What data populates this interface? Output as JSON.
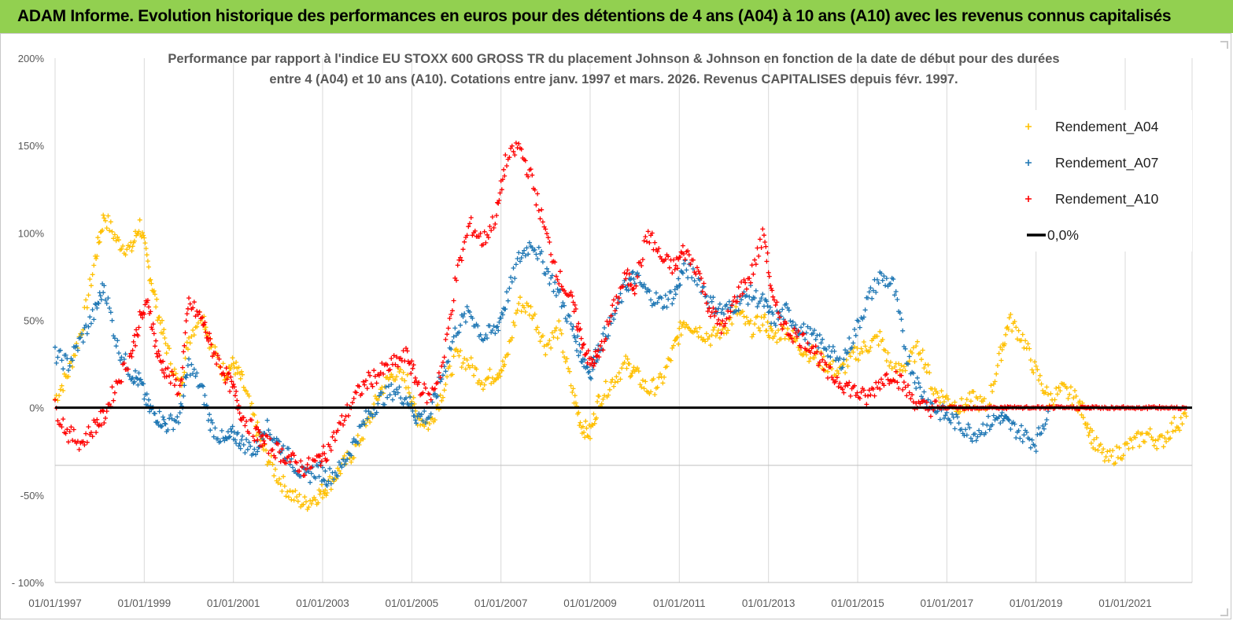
{
  "banner": {
    "title": "ADAM Informe. Evolution historique des performances en euros pour des détentions de 4 ans (A04) à 10 ans (A10) avec les revenus connus capitalisés"
  },
  "chart_data": {
    "type": "scatter",
    "title_line1": "Performance par rapport à l'indice EU STOXX 600 GROSS TR  du placement Johnson & Johnson en fonction de la date de début pour des durées",
    "title_line2": "entre 4 (A04) et 10 ans (A10). Cotations entre janv. 1997 et mars. 2026. Revenus CAPITALISES depuis févr. 1997.",
    "ylim": [
      -100,
      200
    ],
    "ytick_labels": [
      "200%",
      "150%",
      "100%",
      "50%",
      "0%",
      "-50%",
      "- 100%"
    ],
    "ytick_values": [
      200,
      150,
      100,
      50,
      0,
      -50,
      -100
    ],
    "xtick_labels": [
      "01/01/1997",
      "01/01/1999",
      "01/01/2001",
      "01/01/2003",
      "01/01/2005",
      "01/01/2007",
      "01/01/2009",
      "01/01/2011",
      "01/01/2013",
      "01/01/2015",
      "01/01/2017",
      "01/01/2019",
      "01/01/2021"
    ],
    "xtick_years": [
      1997,
      1999,
      2001,
      2003,
      2005,
      2007,
      2009,
      2011,
      2013,
      2015,
      2017,
      2019,
      2021
    ],
    "xlim": [
      1997.0,
      2022.5
    ],
    "grid": "vertical",
    "legend_position": "top-right",
    "series": [
      {
        "name": "Rendement_A04",
        "color": "#ffc000",
        "marker": "plus",
        "x": [
          1997.0,
          1997.3,
          1997.6,
          1997.9,
          1998.1,
          1998.4,
          1998.7,
          1998.9,
          1999.1,
          1999.3,
          1999.5,
          1999.8,
          2000.0,
          2000.3,
          2000.5,
          2000.8,
          2001.0,
          2001.2,
          2001.5,
          2001.7,
          2002.0,
          2002.3,
          2002.6,
          2002.9,
          2003.1,
          2003.4,
          2003.7,
          2004.0,
          2004.3,
          2004.6,
          2004.9,
          2005.1,
          2005.4,
          2005.7,
          2006.0,
          2006.3,
          2006.6,
          2006.9,
          2007.1,
          2007.4,
          2007.7,
          2008.0,
          2008.3,
          2008.6,
          2008.8,
          2009.0,
          2009.2,
          2009.5,
          2009.8,
          2010.0,
          2010.3,
          2010.6,
          2010.9,
          2011.1,
          2011.4,
          2011.7,
          2012.0,
          2012.3,
          2012.6,
          2012.9,
          2013.1,
          2013.4,
          2013.7,
          2014.0,
          2014.3,
          2014.6,
          2014.9,
          2015.2,
          2015.5,
          2015.8,
          2016.1,
          2016.4,
          2016.7,
          2017.0,
          2017.3,
          2017.6,
          2017.9,
          2018.2,
          2018.4,
          2018.7,
          2019.0,
          2019.3,
          2019.6,
          2019.9,
          2020.1,
          2020.3,
          2020.6,
          2020.9,
          2021.2,
          2021.5,
          2021.8,
          2022.1,
          2022.4
        ],
        "y": [
          5,
          20,
          45,
          85,
          110,
          95,
          90,
          105,
          80,
          55,
          35,
          10,
          40,
          55,
          35,
          20,
          25,
          15,
          -10,
          -25,
          -40,
          -50,
          -55,
          -50,
          -45,
          -35,
          -25,
          -10,
          10,
          20,
          15,
          -5,
          -10,
          10,
          30,
          25,
          15,
          20,
          25,
          60,
          55,
          35,
          45,
          10,
          -10,
          -15,
          5,
          15,
          25,
          20,
          10,
          15,
          35,
          50,
          45,
          40,
          45,
          55,
          45,
          50,
          40,
          45,
          35,
          30,
          25,
          20,
          30,
          35,
          40,
          20,
          25,
          35,
          10,
          5,
          0,
          5,
          0,
          30,
          50,
          40,
          20,
          5,
          10,
          5,
          -5,
          -20,
          -30,
          -25,
          -20,
          -15,
          -20,
          -10,
          -5
        ]
      },
      {
        "name": "Rendement_A07",
        "color": "#1f77b4",
        "marker": "plus",
        "x": [
          1997.0,
          1997.3,
          1997.6,
          1997.9,
          1998.1,
          1998.4,
          1998.7,
          1998.9,
          1999.1,
          1999.3,
          1999.5,
          1999.8,
          2000.0,
          2000.3,
          2000.5,
          2000.8,
          2001.0,
          2001.2,
          2001.5,
          2001.7,
          2002.0,
          2002.3,
          2002.6,
          2002.9,
          2003.1,
          2003.4,
          2003.7,
          2004.0,
          2004.3,
          2004.6,
          2004.9,
          2005.1,
          2005.4,
          2005.7,
          2006.0,
          2006.3,
          2006.6,
          2006.9,
          2007.1,
          2007.4,
          2007.7,
          2008.0,
          2008.3,
          2008.6,
          2008.8,
          2009.0,
          2009.2,
          2009.5,
          2009.8,
          2010.0,
          2010.3,
          2010.6,
          2010.9,
          2011.1,
          2011.4,
          2011.7,
          2012.0,
          2012.3,
          2012.6,
          2012.9,
          2013.1,
          2013.4,
          2013.7,
          2014.0,
          2014.3,
          2014.6,
          2014.9,
          2015.2,
          2015.5,
          2015.8,
          2016.1,
          2016.4,
          2016.7,
          2017.0,
          2017.3,
          2017.6,
          2017.9,
          2018.2,
          2018.4,
          2018.7,
          2019.0,
          2019.3
        ],
        "y": [
          30,
          25,
          40,
          55,
          70,
          35,
          20,
          15,
          0,
          -5,
          -10,
          -5,
          25,
          10,
          -10,
          -20,
          -15,
          -20,
          -25,
          -10,
          -20,
          -30,
          -40,
          -35,
          -40,
          -35,
          -20,
          -5,
          5,
          10,
          5,
          -5,
          -5,
          20,
          45,
          55,
          40,
          45,
          60,
          85,
          95,
          80,
          65,
          45,
          30,
          20,
          35,
          50,
          70,
          75,
          65,
          60,
          65,
          80,
          75,
          60,
          55,
          60,
          65,
          60,
          50,
          55,
          45,
          40,
          35,
          25,
          40,
          60,
          75,
          70,
          30,
          10,
          0,
          -5,
          -10,
          -15,
          -10,
          -5,
          -10,
          -15,
          -20,
          0
        ]
      },
      {
        "name": "Rendement_A10",
        "color": "#ff0000",
        "marker": "plus",
        "x": [
          1997.0,
          1997.3,
          1997.6,
          1997.9,
          1998.1,
          1998.4,
          1998.7,
          1998.9,
          1999.1,
          1999.3,
          1999.5,
          1999.8,
          2000.0,
          2000.3,
          2000.5,
          2000.8,
          2001.0,
          2001.2,
          2001.5,
          2001.7,
          2002.0,
          2002.3,
          2002.6,
          2002.9,
          2003.1,
          2003.4,
          2003.7,
          2004.0,
          2004.3,
          2004.6,
          2004.9,
          2005.1,
          2005.4,
          2005.7,
          2006.0,
          2006.3,
          2006.6,
          2006.9,
          2007.1,
          2007.4,
          2007.7,
          2008.0,
          2008.3,
          2008.6,
          2008.8,
          2009.0,
          2009.2,
          2009.5,
          2009.8,
          2010.0,
          2010.3,
          2010.6,
          2010.9,
          2011.1,
          2011.4,
          2011.7,
          2012.0,
          2012.3,
          2012.6,
          2012.9,
          2013.1,
          2013.4,
          2013.7,
          2014.0,
          2014.3,
          2014.6,
          2014.9,
          2015.2,
          2015.5,
          2015.8,
          2016.1,
          2016.4,
          2016.7,
          2017.0,
          2017.3,
          2017.6,
          2017.9,
          2018.2,
          2018.4,
          2018.7,
          2019.0,
          2019.3,
          2019.6,
          2019.9,
          2020.1,
          2020.3,
          2020.6,
          2020.9,
          2021.2,
          2021.5,
          2021.8,
          2022.1,
          2022.4
        ],
        "y": [
          0,
          -15,
          -20,
          -10,
          -5,
          15,
          30,
          50,
          60,
          30,
          20,
          10,
          60,
          50,
          35,
          20,
          10,
          -5,
          -15,
          -20,
          -25,
          -30,
          -35,
          -30,
          -25,
          -10,
          5,
          15,
          20,
          25,
          30,
          15,
          5,
          25,
          75,
          105,
          95,
          110,
          140,
          150,
          130,
          100,
          75,
          60,
          40,
          25,
          30,
          55,
          75,
          70,
          100,
          85,
          80,
          90,
          80,
          55,
          45,
          65,
          75,
          100,
          60,
          45,
          40,
          35,
          20,
          15,
          10,
          5,
          15,
          20,
          10,
          0,
          0,
          0,
          0,
          0,
          0,
          0,
          0,
          0,
          0,
          0,
          0,
          0,
          0,
          0,
          0,
          0,
          0,
          0,
          0,
          0,
          0
        ]
      }
    ],
    "reference_line": {
      "name": "0,0%",
      "value": 0,
      "color": "#000000"
    },
    "legend": [
      "Rendement_A04",
      "Rendement_A07",
      "Rendement_A10",
      "0,0%"
    ]
  }
}
